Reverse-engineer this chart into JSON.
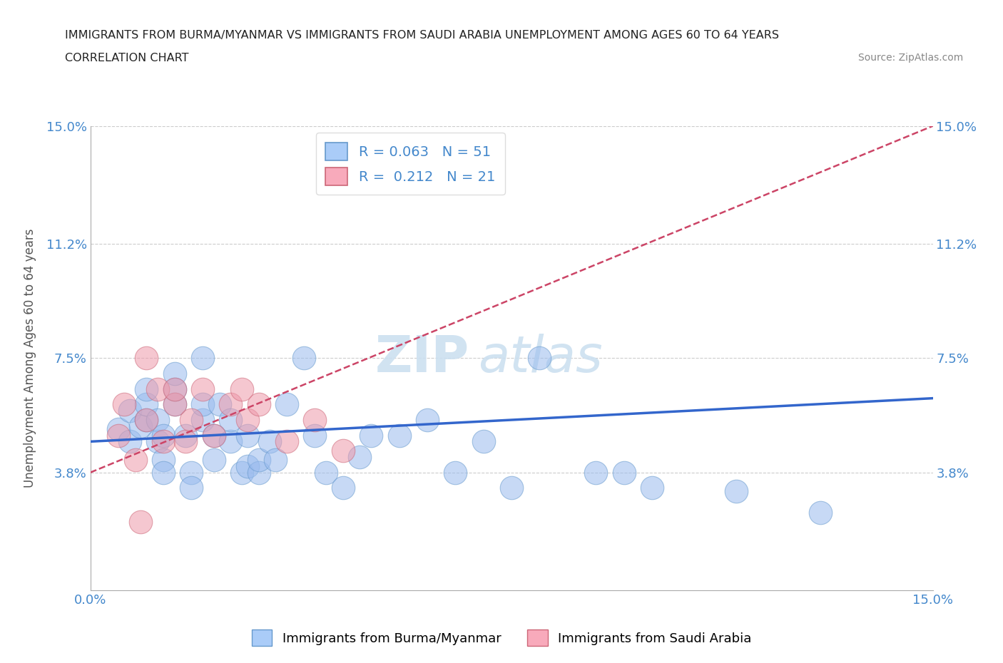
{
  "title_line1": "IMMIGRANTS FROM BURMA/MYANMAR VS IMMIGRANTS FROM SAUDI ARABIA UNEMPLOYMENT AMONG AGES 60 TO 64 YEARS",
  "title_line2": "CORRELATION CHART",
  "source_text": "Source: ZipAtlas.com",
  "ylabel": "Unemployment Among Ages 60 to 64 years",
  "xlim": [
    0.0,
    0.15
  ],
  "ylim": [
    0.0,
    0.15
  ],
  "ytick_labels": [
    "3.8%",
    "7.5%",
    "11.2%",
    "15.0%"
  ],
  "ytick_values": [
    0.038,
    0.075,
    0.112,
    0.15
  ],
  "xtick_values": [
    0.0,
    0.15
  ],
  "xtick_labels": [
    "0.0%",
    "15.0%"
  ],
  "R_burma": 0.063,
  "N_burma": 51,
  "R_saudi": 0.212,
  "N_saudi": 21,
  "legend_color_burma": "#aaccf8",
  "legend_color_saudi": "#f8aabb",
  "line_color_burma": "#3366cc",
  "line_color_saudi": "#cc4466",
  "scatter_color_burma": "#99bbee",
  "scatter_color_saudi": "#ee99aa",
  "scatter_edge_burma": "#6699cc",
  "scatter_edge_saudi": "#cc6677",
  "watermark_zip": "ZIP",
  "watermark_atlas": "atlas",
  "watermark_color": "#ccddf0",
  "background_color": "#ffffff",
  "title_color": "#222222",
  "axis_label_color": "#555555",
  "tick_label_color": "#4488cc",
  "burma_x": [
    0.005,
    0.007,
    0.007,
    0.009,
    0.01,
    0.01,
    0.01,
    0.012,
    0.012,
    0.013,
    0.013,
    0.013,
    0.015,
    0.015,
    0.015,
    0.017,
    0.018,
    0.018,
    0.02,
    0.02,
    0.02,
    0.022,
    0.022,
    0.023,
    0.025,
    0.025,
    0.027,
    0.028,
    0.028,
    0.03,
    0.03,
    0.032,
    0.033,
    0.035,
    0.038,
    0.04,
    0.042,
    0.045,
    0.048,
    0.05,
    0.055,
    0.06,
    0.065,
    0.07,
    0.075,
    0.08,
    0.09,
    0.095,
    0.1,
    0.115,
    0.13
  ],
  "burma_y": [
    0.052,
    0.048,
    0.058,
    0.053,
    0.055,
    0.06,
    0.065,
    0.048,
    0.055,
    0.05,
    0.042,
    0.038,
    0.06,
    0.065,
    0.07,
    0.05,
    0.038,
    0.033,
    0.055,
    0.06,
    0.075,
    0.05,
    0.042,
    0.06,
    0.048,
    0.055,
    0.038,
    0.05,
    0.04,
    0.038,
    0.042,
    0.048,
    0.042,
    0.06,
    0.075,
    0.05,
    0.038,
    0.033,
    0.043,
    0.05,
    0.05,
    0.055,
    0.038,
    0.048,
    0.033,
    0.075,
    0.038,
    0.038,
    0.033,
    0.032,
    0.025
  ],
  "saudi_x": [
    0.005,
    0.006,
    0.008,
    0.009,
    0.01,
    0.01,
    0.012,
    0.013,
    0.015,
    0.015,
    0.017,
    0.018,
    0.02,
    0.022,
    0.025,
    0.027,
    0.028,
    0.03,
    0.035,
    0.04,
    0.045
  ],
  "saudi_y": [
    0.05,
    0.06,
    0.042,
    0.022,
    0.055,
    0.075,
    0.065,
    0.048,
    0.06,
    0.065,
    0.048,
    0.055,
    0.065,
    0.05,
    0.06,
    0.065,
    0.055,
    0.06,
    0.048,
    0.055,
    0.045
  ],
  "burma_line_x": [
    0.0,
    0.15
  ],
  "burma_line_y": [
    0.048,
    0.062
  ],
  "saudi_line_x": [
    0.0,
    0.15
  ],
  "saudi_line_y": [
    0.038,
    0.15
  ]
}
